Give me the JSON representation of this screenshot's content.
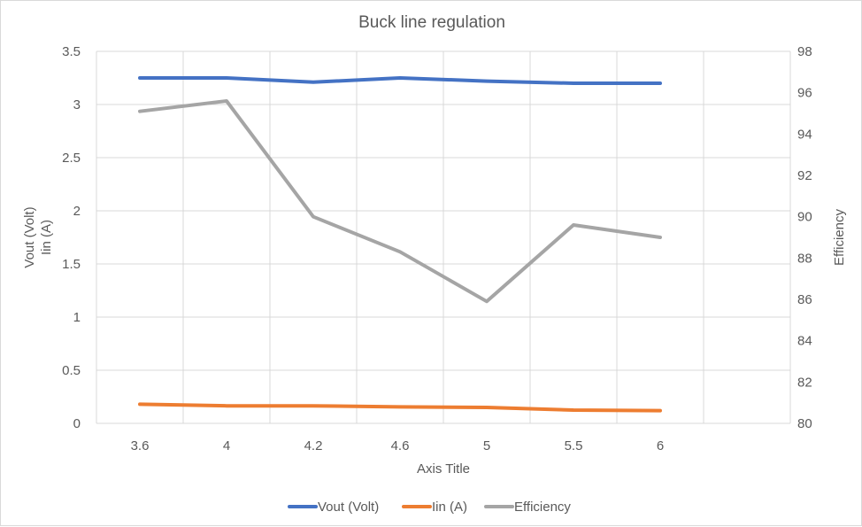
{
  "chart_data": {
    "type": "line",
    "title": "Buck line regulation",
    "xlabel": "Axis Title",
    "ylabel_left": [
      "Vout (Volt)",
      "Iin (A)"
    ],
    "ylabel_right": "Efficiency",
    "categories": [
      "3.6",
      "4",
      "4.2",
      "4.6",
      "5",
      "5.5",
      "6"
    ],
    "extra_empty_categories": 1,
    "ylim_left": [
      0,
      3.5
    ],
    "ylim_right": [
      80,
      98
    ],
    "yticks_left": [
      "0",
      "0.5",
      "1",
      "1.5",
      "2",
      "2.5",
      "3",
      "3.5"
    ],
    "yticks_right": [
      "80",
      "82",
      "84",
      "86",
      "88",
      "90",
      "92",
      "94",
      "96",
      "98"
    ],
    "grid": true,
    "legend_position": "bottom",
    "series": [
      {
        "name": "Vout (Volt)",
        "axis": "left",
        "color": "#4472C4",
        "values": [
          3.25,
          3.25,
          3.21,
          3.25,
          3.22,
          3.2,
          3.2
        ]
      },
      {
        "name": "Iin (A)",
        "axis": "left",
        "color": "#ED7D31",
        "values": [
          0.18,
          0.165,
          0.165,
          0.155,
          0.15,
          0.125,
          0.12
        ]
      },
      {
        "name": "Efficiency",
        "axis": "right",
        "color": "#A5A5A5",
        "values": [
          95.1,
          95.6,
          90.0,
          88.3,
          85.9,
          89.6,
          89.0
        ]
      }
    ]
  }
}
